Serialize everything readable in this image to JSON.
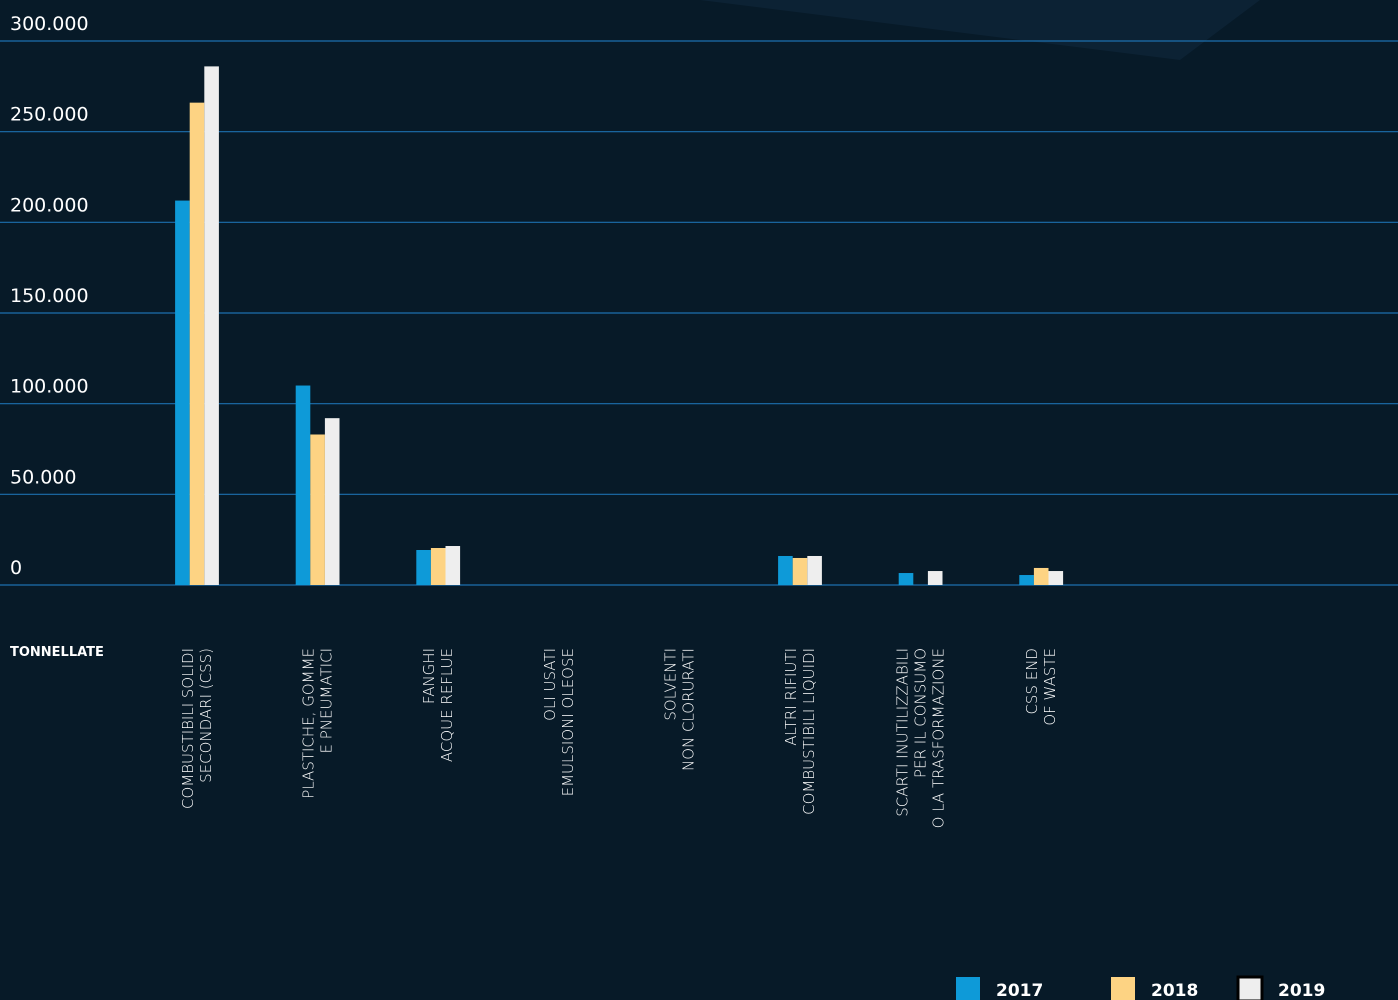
{
  "chart_data": {
    "type": "bar",
    "y_axis_label": "TONNELLATE",
    "categories": [
      [
        "COMBUSTIBILI SOLIDI",
        "SECONDARI (CSS)"
      ],
      [
        "PLASTICHE, GOMME",
        "E PNEUMATICI"
      ],
      [
        "FANGHI",
        "ACQUE REFLUE"
      ],
      [
        "OLI USATI",
        "EMULSIONI OLEOSE"
      ],
      [
        "SOLVENTI",
        "NON CLORURATI"
      ],
      [
        "ALTRI RIFIUTI",
        "COMBUSTIBILI LIQUIDI"
      ],
      [
        "SCARTI INUTILIZZABILI",
        "PER IL CONSUMO",
        "O LA TRASFORMAZIONE"
      ],
      [
        "CSS END",
        "OF WASTE"
      ]
    ],
    "series": [
      {
        "name": "2017",
        "color": "#0e9ad8",
        "values": [
          212000,
          110000,
          19300,
          0,
          0,
          16000,
          6600,
          5500
        ]
      },
      {
        "name": "2018",
        "color": "#fdd383",
        "values": [
          266000,
          83000,
          20400,
          0,
          0,
          14900,
          0,
          9400
        ]
      },
      {
        "name": "2019",
        "color": "#eeeeee",
        "values": [
          286000,
          92000,
          21500,
          0,
          0,
          16000,
          7700,
          7700
        ]
      }
    ],
    "ylim": [
      0,
      300000
    ],
    "yticks": [
      0,
      {
        "value": 50000,
        "label": "50.000"
      },
      {
        "value": 100000,
        "label": "100.000"
      },
      {
        "value": 150000,
        "label": "150.000"
      },
      {
        "value": 200000,
        "label": "200.000"
      },
      {
        "value": 250000,
        "label": "250.000"
      },
      {
        "value": 300000,
        "label": "300.000"
      }
    ],
    "grid": true,
    "legend": "bottom-right"
  }
}
